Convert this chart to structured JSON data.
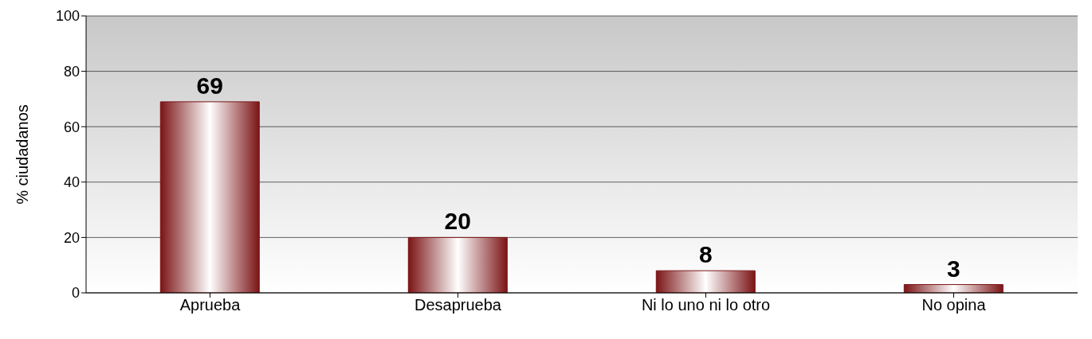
{
  "chart_data": {
    "type": "bar",
    "ylabel": "% ciudadanos",
    "categories": [
      "Aprueba",
      "Desaprueba",
      "Ni lo uno ni lo otro",
      "No opina"
    ],
    "values": [
      69,
      20,
      8,
      3
    ],
    "color": "#7b1416",
    "ylim": [
      0,
      100
    ],
    "yticks": [
      0,
      20,
      40,
      60,
      80,
      100
    ],
    "grid": "y",
    "data_labels": true
  }
}
